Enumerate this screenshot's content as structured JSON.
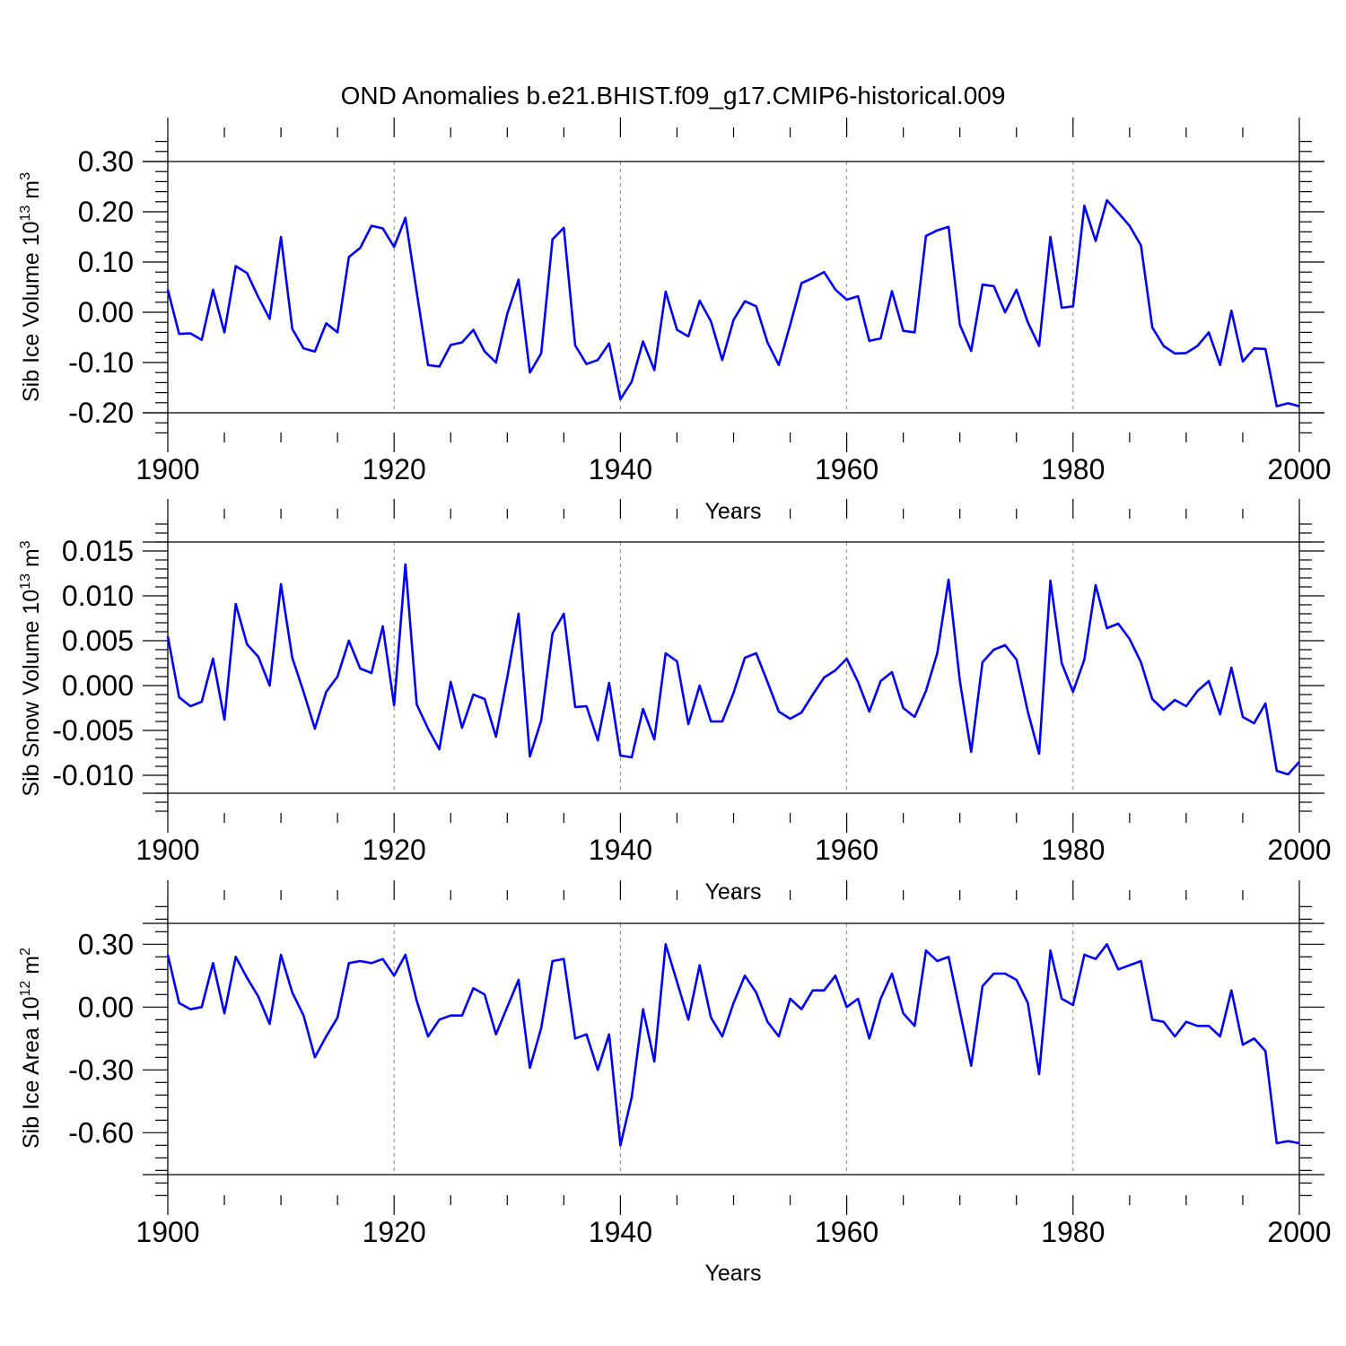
{
  "title": "OND Anomalies b.e21.BHIST.f09_g17.CMIP6-historical.009",
  "line_color": "#0000ff",
  "chart_data": [
    {
      "type": "line",
      "name": "ice-volume",
      "ylabel": "Sib Ice Volume 10",
      "ylabel_exp": "13",
      "ylabel_unit": " m",
      "ylabel_unit_exp": "3",
      "xlabel": "Years",
      "x_start": 1900,
      "x_end": 2000,
      "xlim": [
        1900,
        2000
      ],
      "ylim": [
        -0.2,
        0.3
      ],
      "xticks": [
        1900,
        1920,
        1940,
        1960,
        1980,
        2000
      ],
      "yticks": [
        -0.2,
        -0.1,
        0.0,
        0.1,
        0.2,
        0.3
      ],
      "ytick_labels": [
        "-0.20",
        "-0.10",
        "0.00",
        "0.10",
        "0.20",
        "0.30"
      ],
      "values": [
        0.045,
        -0.043,
        -0.042,
        -0.055,
        0.045,
        -0.04,
        0.092,
        0.078,
        0.03,
        -0.013,
        0.15,
        -0.033,
        -0.072,
        -0.078,
        -0.022,
        -0.04,
        0.11,
        0.128,
        0.172,
        0.167,
        0.13,
        0.188,
        0.04,
        -0.105,
        -0.108,
        -0.065,
        -0.06,
        -0.035,
        -0.078,
        -0.1,
        -0.003,
        0.065,
        -0.12,
        -0.082,
        0.145,
        0.168,
        -0.066,
        -0.103,
        -0.095,
        -0.062,
        -0.173,
        -0.138,
        -0.058,
        -0.115,
        0.041,
        -0.035,
        -0.048,
        0.023,
        -0.018,
        -0.095,
        -0.015,
        0.022,
        0.012,
        -0.06,
        -0.105,
        -0.025,
        0.058,
        0.068,
        0.08,
        0.045,
        0.025,
        0.032,
        -0.057,
        -0.052,
        0.042,
        -0.037,
        -0.04,
        0.152,
        0.163,
        0.17,
        -0.025,
        -0.077,
        0.055,
        0.052,
        0.0,
        0.045,
        -0.02,
        -0.067,
        0.15,
        0.009,
        0.012,
        0.212,
        0.142,
        0.223,
        0.198,
        0.172,
        0.133,
        -0.03,
        -0.067,
        -0.082,
        -0.081,
        -0.067,
        -0.04,
        -0.105,
        0.003,
        -0.098,
        -0.072,
        -0.073,
        -0.187,
        -0.181,
        -0.187
      ]
    },
    {
      "type": "line",
      "name": "snow-volume",
      "ylabel": "Sib Snow Volume 10",
      "ylabel_exp": "13",
      "ylabel_unit": " m",
      "ylabel_unit_exp": "3",
      "xlabel": "Years",
      "x_start": 1900,
      "x_end": 2000,
      "xlim": [
        1900,
        2000
      ],
      "ylim": [
        -0.012,
        0.016
      ],
      "xticks": [
        1900,
        1920,
        1940,
        1960,
        1980,
        2000
      ],
      "yticks": [
        -0.01,
        -0.005,
        0.0,
        0.005,
        0.01,
        0.015
      ],
      "ytick_labels": [
        "-0.010",
        "-0.005",
        "0.000",
        "0.005",
        "0.010",
        "0.015"
      ],
      "values": [
        0.0055,
        -0.0013,
        -0.0023,
        -0.0018,
        0.003,
        -0.0038,
        0.0091,
        0.0046,
        0.0032,
        0.0,
        0.0113,
        0.0031,
        -0.0007,
        -0.0048,
        -0.0007,
        0.001,
        0.005,
        0.0019,
        0.0014,
        0.0066,
        -0.0022,
        0.0135,
        -0.0021,
        -0.0048,
        -0.0071,
        0.0004,
        -0.0047,
        -0.001,
        -0.0015,
        -0.0057,
        0.0009,
        0.008,
        -0.0079,
        -0.0039,
        0.0058,
        0.008,
        -0.0024,
        -0.0023,
        -0.0061,
        0.0003,
        -0.0078,
        -0.008,
        -0.0026,
        -0.006,
        0.0036,
        0.0027,
        -0.0043,
        0.0,
        -0.004,
        -0.004,
        -0.0008,
        0.0031,
        0.0036,
        0.0004,
        -0.0029,
        -0.0037,
        -0.003,
        -0.001,
        0.0009,
        0.0017,
        0.003,
        0.0004,
        -0.0029,
        0.0005,
        0.0015,
        -0.0025,
        -0.0035,
        -0.0006,
        0.0036,
        0.0118,
        0.0005,
        -0.0074,
        0.0026,
        0.004,
        0.0045,
        0.0029,
        -0.0029,
        -0.0076,
        0.0117,
        0.0025,
        -0.0007,
        0.0029,
        0.0112,
        0.0064,
        0.0069,
        0.0052,
        0.0026,
        -0.0015,
        -0.0027,
        -0.0016,
        -0.0023,
        -0.0006,
        0.0005,
        -0.0032,
        0.002,
        -0.0035,
        -0.0042,
        -0.002,
        -0.0095,
        -0.0099,
        -0.0085
      ]
    },
    {
      "type": "line",
      "name": "ice-area",
      "ylabel": "Sib Ice Area 10",
      "ylabel_exp": "12",
      "ylabel_unit": " m",
      "ylabel_unit_exp": "2",
      "xlabel": "Years",
      "x_start": 1900,
      "x_end": 2000,
      "xlim": [
        1900,
        2000
      ],
      "ylim": [
        -0.8,
        0.4
      ],
      "xticks": [
        1900,
        1920,
        1940,
        1960,
        1980,
        2000
      ],
      "yticks": [
        -0.6,
        -0.3,
        0.0,
        0.3
      ],
      "ytick_labels": [
        "-0.60",
        "-0.30",
        "0.00",
        "0.30"
      ],
      "values": [
        0.25,
        0.02,
        -0.01,
        0.0,
        0.21,
        -0.03,
        0.24,
        0.14,
        0.05,
        -0.08,
        0.25,
        0.07,
        -0.04,
        -0.24,
        -0.14,
        -0.05,
        0.21,
        0.22,
        0.21,
        0.23,
        0.15,
        0.25,
        0.03,
        -0.14,
        -0.06,
        -0.04,
        -0.04,
        0.09,
        0.06,
        -0.13,
        0.0,
        0.13,
        -0.29,
        -0.1,
        0.22,
        0.23,
        -0.15,
        -0.13,
        -0.3,
        -0.13,
        -0.66,
        -0.43,
        -0.01,
        -0.26,
        0.3,
        0.12,
        -0.06,
        0.2,
        -0.05,
        -0.14,
        0.02,
        0.15,
        0.07,
        -0.07,
        -0.14,
        0.04,
        -0.01,
        0.08,
        0.08,
        0.15,
        0.0,
        0.04,
        -0.15,
        0.04,
        0.16,
        -0.03,
        -0.09,
        0.27,
        0.22,
        0.24,
        -0.02,
        -0.28,
        0.1,
        0.16,
        0.16,
        0.13,
        0.02,
        -0.32,
        0.27,
        0.04,
        0.01,
        0.25,
        0.23,
        0.3,
        0.18,
        0.2,
        0.22,
        -0.06,
        -0.07,
        -0.14,
        -0.07,
        -0.09,
        -0.09,
        -0.14,
        0.08,
        -0.18,
        -0.15,
        -0.21,
        -0.65,
        -0.64,
        -0.65
      ]
    }
  ]
}
